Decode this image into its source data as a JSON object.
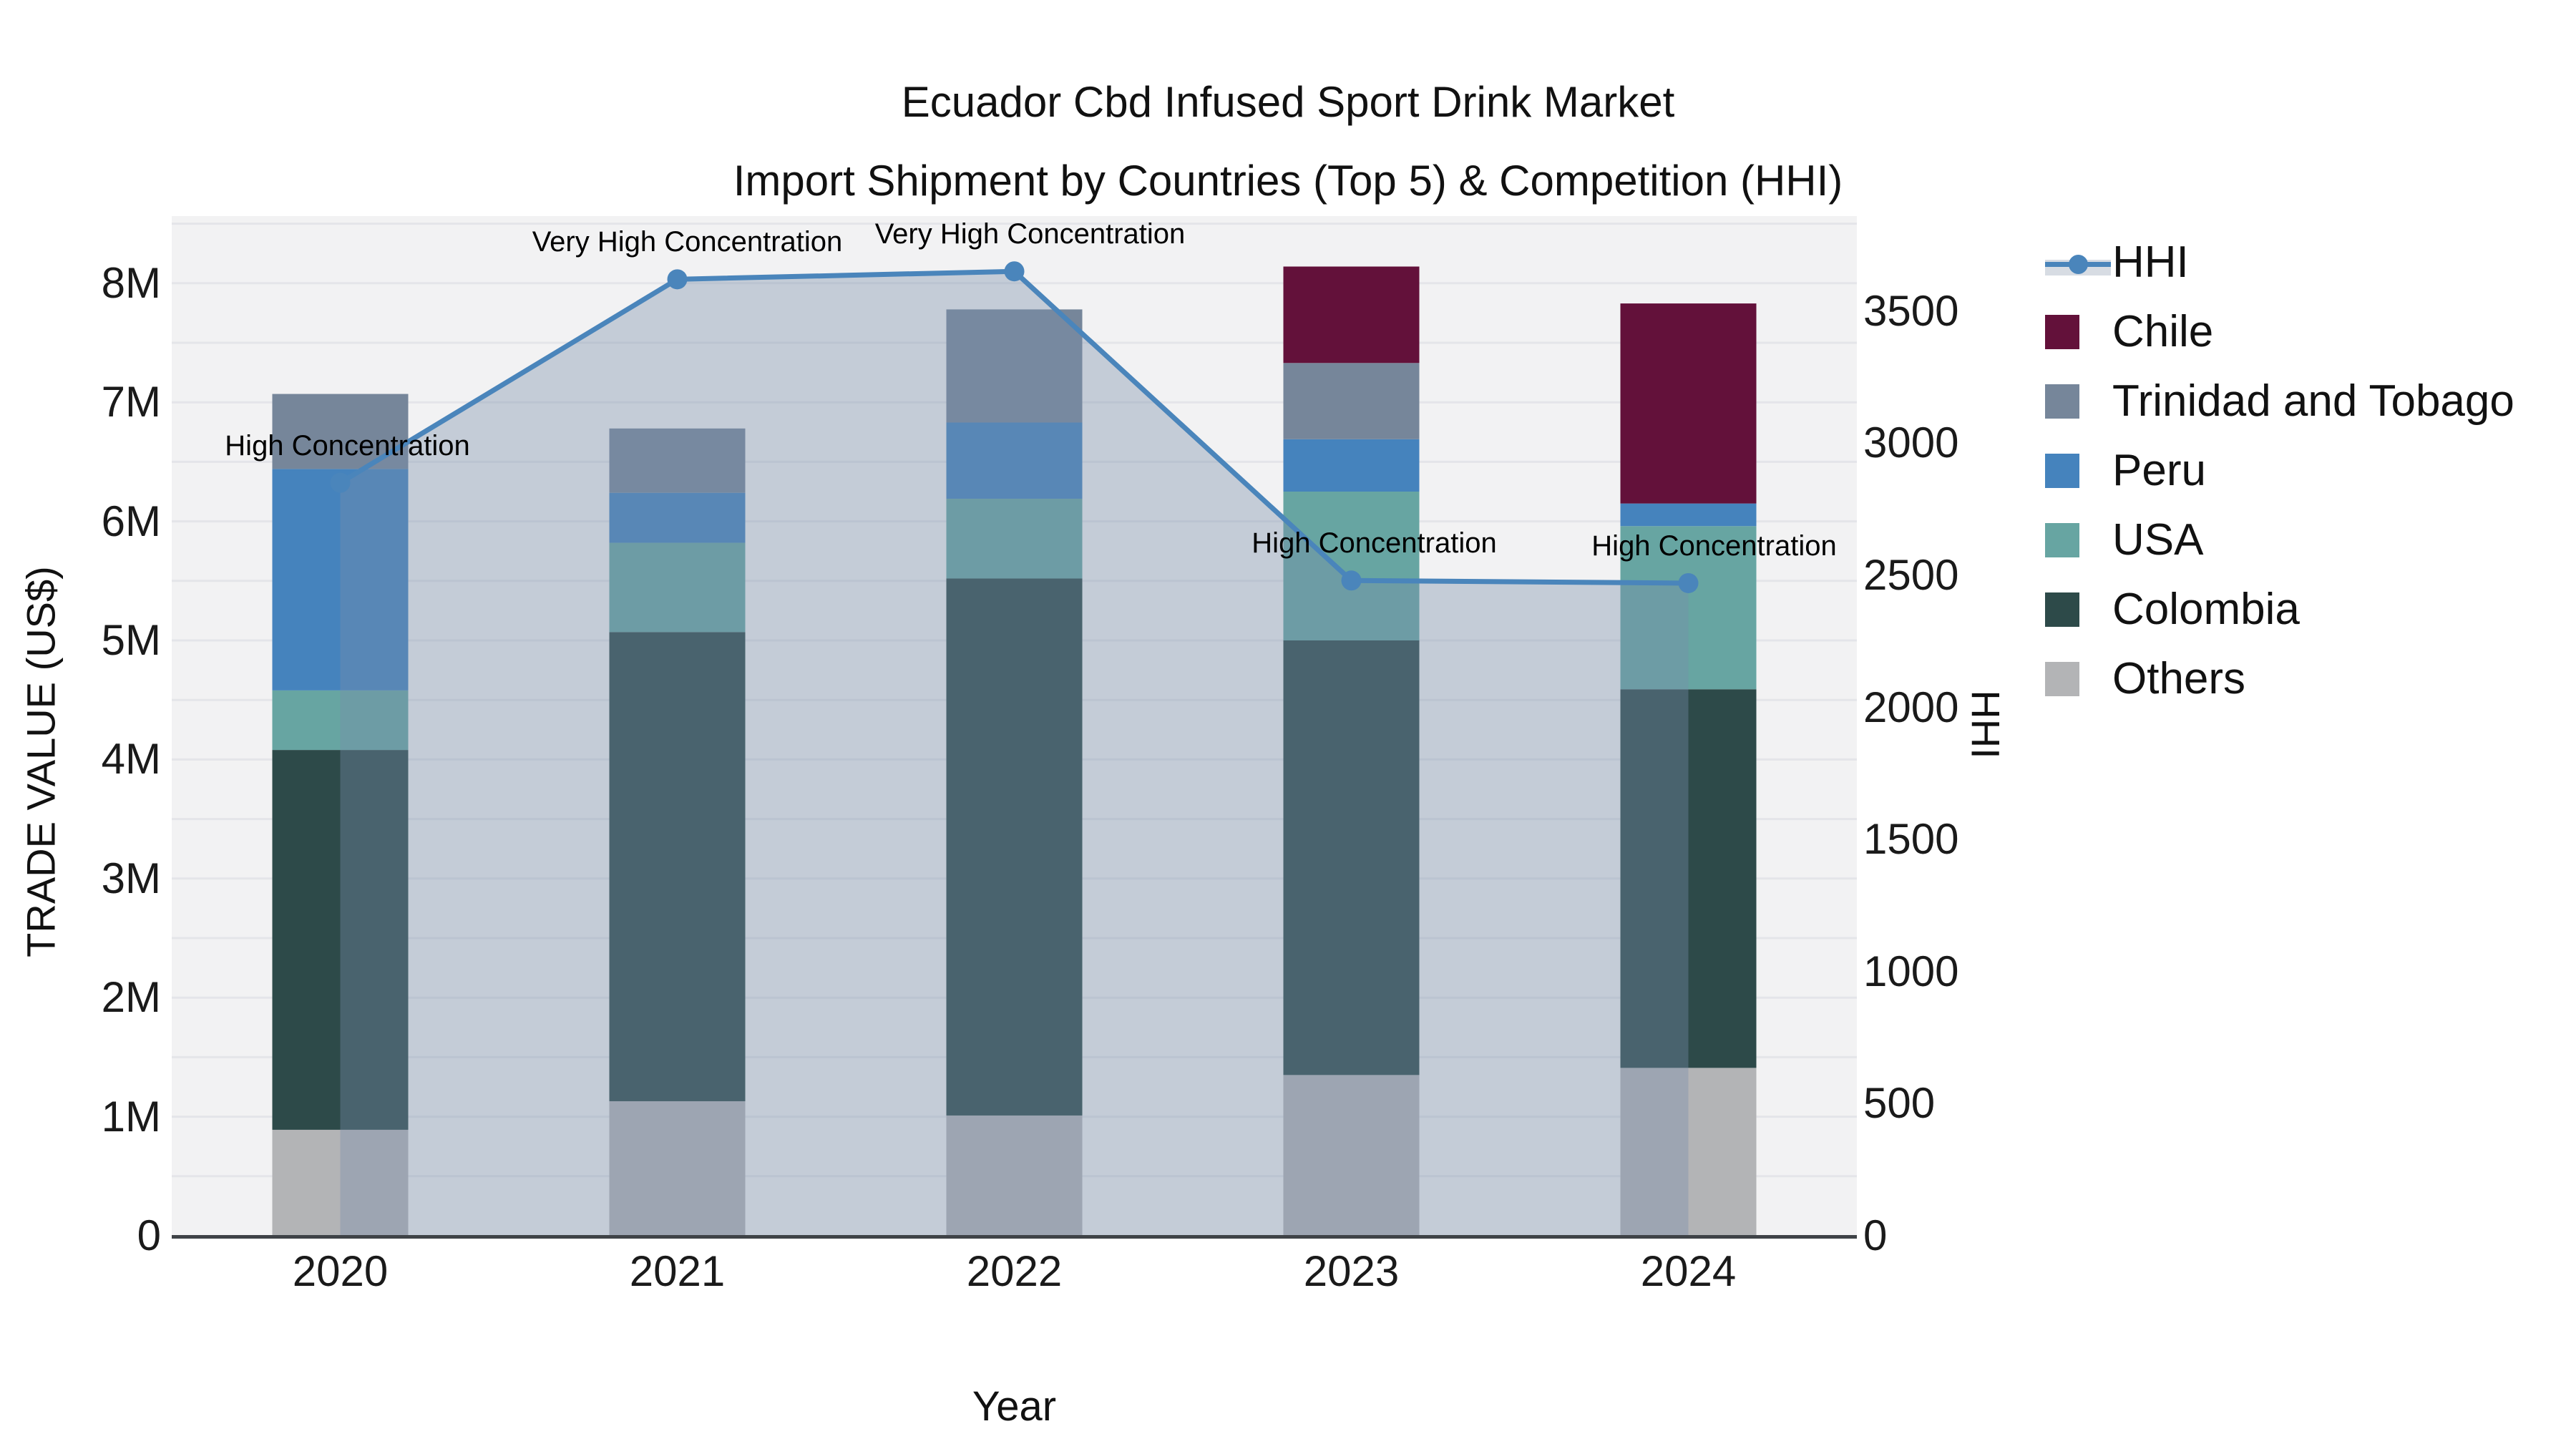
{
  "title": {
    "line1": "Ecuador Cbd Infused Sport Drink Market",
    "line2": "Import Shipment by Countries (Top 5) & Competition (HHI)"
  },
  "axes": {
    "left": {
      "title": "TRADE VALUE (US$)",
      "ticks": [
        "0",
        "1M",
        "2M",
        "3M",
        "4M",
        "5M",
        "6M",
        "7M",
        "8M"
      ],
      "tick_values": [
        0,
        1,
        2,
        3,
        4,
        5,
        6,
        7,
        8
      ]
    },
    "right": {
      "title": "HHI",
      "ticks": [
        "0",
        "500",
        "1000",
        "1500",
        "2000",
        "2500",
        "3000",
        "3500"
      ],
      "tick_values": [
        0,
        500,
        1000,
        1500,
        2000,
        2500,
        3000,
        3500
      ]
    },
    "x": {
      "title": "Year",
      "ticks": [
        "2020",
        "2021",
        "2022",
        "2023",
        "2024"
      ]
    }
  },
  "legend": {
    "items": [
      {
        "label": "HHI",
        "type": "line",
        "color": "#4a85bb",
        "band": "#d7dce3"
      },
      {
        "label": "Chile",
        "type": "swatch",
        "color": "#63113a"
      },
      {
        "label": "Trinidad and Tobago",
        "type": "swatch",
        "color": "#76869a"
      },
      {
        "label": "Peru",
        "type": "swatch",
        "color": "#4583bd"
      },
      {
        "label": "USA",
        "type": "swatch",
        "color": "#67a5a2"
      },
      {
        "label": "Colombia",
        "type": "swatch",
        "color": "#2d4a49"
      },
      {
        "label": "Others",
        "type": "swatch",
        "color": "#b3b4b6"
      }
    ]
  },
  "annotations": [
    {
      "x": "2020",
      "text": "High Concentration"
    },
    {
      "x": "2021",
      "text": "Very High Concentration"
    },
    {
      "x": "2022",
      "text": "Very High Concentration"
    },
    {
      "x": "2023",
      "text": "High Concentration"
    },
    {
      "x": "2024",
      "text": "High Concentration"
    }
  ],
  "chart_data": {
    "type": "bar",
    "subtype": "stacked-bars-with-line",
    "title": "Ecuador Cbd Infused Sport Drink Market Import Shipment by Countries (Top 5) & Competition (HHI)",
    "xlabel": "Year",
    "ylabel_left": "TRADE VALUE (US$)",
    "ylabel_right": "HHI",
    "categories": [
      "2020",
      "2021",
      "2022",
      "2023",
      "2024"
    ],
    "bar_units": "million US$",
    "ylim_left": [
      0,
      8.57
    ],
    "ylim_right": [
      0,
      3865
    ],
    "grid": true,
    "legend_position": "right",
    "series": [
      {
        "name": "Others",
        "color": "#b3b4b6",
        "values": [
          0.89,
          1.13,
          1.01,
          1.35,
          1.41
        ]
      },
      {
        "name": "Colombia",
        "color": "#2d4a49",
        "values": [
          3.19,
          3.94,
          4.51,
          3.65,
          3.18
        ]
      },
      {
        "name": "USA",
        "color": "#67a5a2",
        "values": [
          0.5,
          0.75,
          0.67,
          1.25,
          1.37
        ]
      },
      {
        "name": "Peru",
        "color": "#4583bd",
        "values": [
          1.86,
          0.42,
          0.64,
          0.44,
          0.19
        ]
      },
      {
        "name": "Trinidad and Tobago",
        "color": "#76869a",
        "values": [
          0.63,
          0.54,
          0.95,
          0.64,
          0.0
        ]
      },
      {
        "name": "Chile",
        "color": "#63113a",
        "values": [
          0.0,
          0.0,
          0.0,
          0.81,
          1.68
        ]
      }
    ],
    "bar_totals": [
      7.07,
      6.78,
      7.78,
      8.14,
      7.83
    ],
    "line_series": {
      "name": "HHI",
      "color": "#4a85bb",
      "fill_color": "rgba(122,142,170,0.38)",
      "values": [
        2850,
        3620,
        3650,
        2480,
        2470
      ]
    }
  }
}
